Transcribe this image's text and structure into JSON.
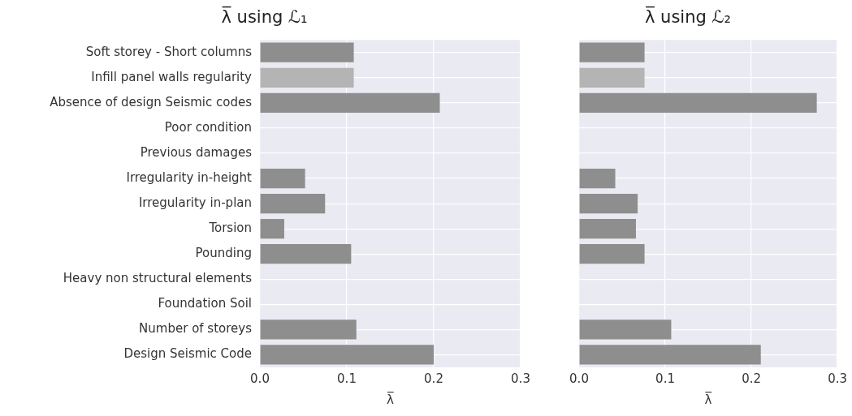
{
  "chart_data": [
    {
      "type": "bar",
      "orientation": "horizontal",
      "title": "λ̅ using ℒ₁",
      "xlabel": "λ̅",
      "categories": [
        "Soft storey - Short columns",
        "Infill panel walls regularity",
        "Absence of design Seismic codes",
        "Poor condition",
        "Previous damages",
        "Irregularity in-height",
        "Irregularity in-plan",
        "Torsion",
        "Pounding",
        "Heavy non structural elements",
        "Foundation Soil",
        "Number of storeys",
        "Design Seismic Code"
      ],
      "values": [
        0.108,
        0.108,
        0.207,
        0,
        0,
        0.052,
        0.075,
        0.028,
        0.105,
        0,
        0,
        0.111,
        0.2
      ],
      "colors": [
        "#8e8e8e",
        "#b4b4b4",
        "#8e8e8e",
        "#8e8e8e",
        "#8e8e8e",
        "#8e8e8e",
        "#8e8e8e",
        "#8e8e8e",
        "#8e8e8e",
        "#8e8e8e",
        "#8e8e8e",
        "#8e8e8e",
        "#8e8e8e"
      ],
      "xlim": [
        0,
        0.3
      ],
      "xticks": [
        {
          "value": 0,
          "label": "0.0"
        },
        0.1,
        0.2,
        0.3
      ],
      "grid": true,
      "legend": false
    },
    {
      "type": "bar",
      "orientation": "horizontal",
      "title": "λ̅ using ℒ₂",
      "xlabel": "λ̅",
      "categories": [
        null,
        null,
        null,
        null,
        null,
        null,
        null,
        null,
        null,
        null,
        null,
        null,
        null
      ],
      "values": [
        0.076,
        0.076,
        0.276,
        0,
        0,
        0.042,
        0.068,
        0.066,
        0.076,
        0,
        0,
        0.107,
        0.211
      ],
      "colors": [
        "#8e8e8e",
        "#b4b4b4",
        "#8e8e8e",
        "#8e8e8e",
        "#8e8e8e",
        "#8e8e8e",
        "#8e8e8e",
        "#8e8e8e",
        "#8e8e8e",
        "#8e8e8e",
        "#8e8e8e",
        "#8e8e8e",
        "#8e8e8e"
      ],
      "xlim": [
        0,
        0.3
      ],
      "xticks": [
        {
          "value": 0,
          "label": "0.0"
        },
        0.1,
        0.2,
        0.3
      ],
      "grid": true,
      "legend": false,
      "tick_labels": "x"
    }
  ]
}
